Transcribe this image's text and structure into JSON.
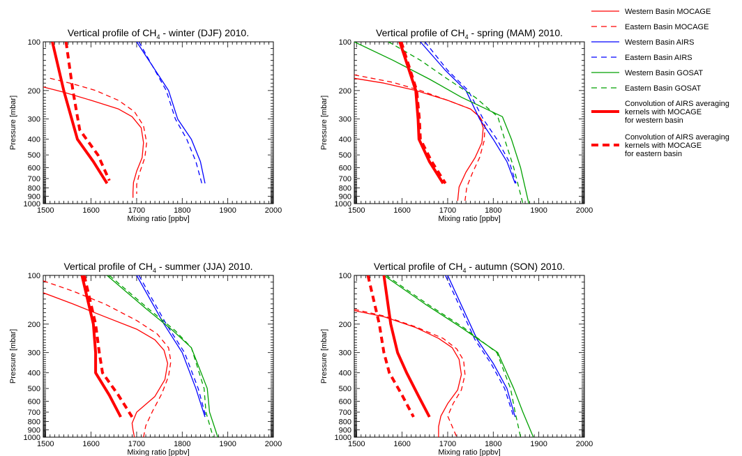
{
  "legend": {
    "placement": "top-right",
    "entries": [
      {
        "lines": [
          "Western Basin MOCAGE"
        ],
        "color": "#ff0000",
        "dash": "solid",
        "weight": "thin"
      },
      {
        "lines": [
          "Eastern Basin MOCAGE"
        ],
        "color": "#ff0000",
        "dash": "dashed",
        "weight": "thin"
      },
      {
        "lines": [
          "Western Basin AIRS"
        ],
        "color": "#0000ff",
        "dash": "solid",
        "weight": "thin"
      },
      {
        "lines": [
          "Eastern Basin AIRS"
        ],
        "color": "#0000ff",
        "dash": "dashed",
        "weight": "thin"
      },
      {
        "lines": [
          "Western Basin GOSAT"
        ],
        "color": "#00a000",
        "dash": "solid",
        "weight": "thin"
      },
      {
        "lines": [
          "Eastern Basin GOSAT"
        ],
        "color": "#00a000",
        "dash": "dashed",
        "weight": "thin"
      },
      {
        "lines": [
          "Convolution of AIRS averaging",
          "kernels with MOCAGE",
          "for western basin"
        ],
        "color": "#ff0000",
        "dash": "solid",
        "weight": "thick"
      },
      {
        "lines": [
          "Convolution of AIRS averaging",
          "kernels with MOCAGE",
          "for eastern basin"
        ],
        "color": "#ff0000",
        "dash": "dashed",
        "weight": "thick"
      }
    ]
  },
  "chart_data": [
    {
      "type": "line",
      "title_pre": "Vertical profile of CH",
      "title_sub": "4",
      "title_post": " - winter (DJF) 2010.",
      "xlabel": "Mixing ratio [ppbv]",
      "ylabel": "Pressure [mbar]",
      "xlim": [
        1495,
        2000
      ],
      "ylim": [
        1000,
        100
      ],
      "yscale": "log",
      "xticks": [
        1500,
        1600,
        1700,
        1800,
        1900,
        2000
      ],
      "yticks": [
        100,
        200,
        300,
        400,
        500,
        600,
        700,
        800,
        900,
        1000
      ],
      "series": [
        {
          "legend_index": 0,
          "color": "#ff0000",
          "dash": "solid",
          "weight": "thin",
          "x": [
            1495,
            1540,
            1600,
            1660,
            1690,
            1710,
            1715,
            1712,
            1700,
            1693,
            1692,
            1692
          ],
          "y": [
            190,
            205,
            230,
            260,
            290,
            340,
            420,
            520,
            630,
            740,
            850,
            920
          ]
        },
        {
          "legend_index": 1,
          "color": "#ff0000",
          "dash": "dashed",
          "weight": "thin",
          "x": [
            1510,
            1560,
            1610,
            1660,
            1695,
            1715,
            1722,
            1718,
            1707,
            1700,
            1700
          ],
          "y": [
            168,
            182,
            200,
            230,
            270,
            330,
            420,
            520,
            640,
            760,
            870
          ]
        },
        {
          "legend_index": 2,
          "color": "#0000ff",
          "dash": "solid",
          "weight": "thin",
          "x": [
            1700,
            1770,
            1790,
            1820,
            1840,
            1850
          ],
          "y": [
            100,
            200,
            300,
            400,
            550,
            750
          ]
        },
        {
          "legend_index": 3,
          "color": "#0000ff",
          "dash": "dashed",
          "weight": "thin",
          "x": [
            1705,
            1765,
            1785,
            1810,
            1830,
            1843
          ],
          "y": [
            100,
            200,
            300,
            400,
            550,
            750
          ]
        },
        {
          "legend_index": 6,
          "color": "#ff0000",
          "dash": "solid",
          "weight": "thick",
          "x": [
            1515,
            1540,
            1570,
            1605,
            1635
          ],
          "y": [
            100,
            200,
            400,
            550,
            750
          ]
        },
        {
          "legend_index": 7,
          "color": "#ff0000",
          "dash": "dashed",
          "weight": "thick",
          "x": [
            1545,
            1560,
            1575,
            1615,
            1640
          ],
          "y": [
            100,
            200,
            350,
            500,
            720
          ]
        }
      ]
    },
    {
      "type": "line",
      "title_pre": "Vertical profile of CH",
      "title_sub": "4",
      "title_post": " - spring (MAM) 2010.",
      "xlabel": "Mixing ratio [ppbv]",
      "ylabel": "Pressure [mbar]",
      "xlim": [
        1495,
        2000
      ],
      "ylim": [
        1000,
        100
      ],
      "yscale": "log",
      "xticks": [
        1500,
        1600,
        1700,
        1800,
        1900,
        2000
      ],
      "yticks": [
        100,
        200,
        300,
        400,
        500,
        600,
        700,
        800,
        900,
        1000
      ],
      "series": [
        {
          "legend_index": 0,
          "color": "#ff0000",
          "dash": "solid",
          "weight": "thin",
          "x": [
            1495,
            1560,
            1630,
            1700,
            1750,
            1770,
            1778,
            1775,
            1760,
            1740,
            1725,
            1722
          ],
          "y": [
            168,
            180,
            200,
            230,
            260,
            290,
            340,
            420,
            520,
            640,
            790,
            960
          ]
        },
        {
          "legend_index": 1,
          "color": "#ff0000",
          "dash": "dashed",
          "weight": "thin",
          "x": [
            1495,
            1580,
            1640,
            1700,
            1750,
            1770,
            1782,
            1780,
            1770,
            1755,
            1742,
            1738
          ],
          "y": [
            160,
            178,
            200,
            230,
            260,
            290,
            330,
            410,
            520,
            640,
            790,
            960
          ]
        },
        {
          "legend_index": 2,
          "color": "#0000ff",
          "dash": "solid",
          "weight": "thin",
          "x": [
            1640,
            1695,
            1740,
            1770,
            1800,
            1830,
            1848
          ],
          "y": [
            100,
            150,
            200,
            300,
            400,
            550,
            750
          ]
        },
        {
          "legend_index": 3,
          "color": "#0000ff",
          "dash": "dashed",
          "weight": "thin",
          "x": [
            1650,
            1700,
            1745,
            1778,
            1808,
            1835,
            1850
          ],
          "y": [
            100,
            150,
            200,
            300,
            400,
            550,
            750
          ]
        },
        {
          "legend_index": 4,
          "color": "#00a000",
          "dash": "solid",
          "weight": "thin",
          "x": [
            1495,
            1580,
            1660,
            1730,
            1820,
            1840,
            1860,
            1878
          ],
          "y": [
            100,
            130,
            170,
            220,
            290,
            400,
            600,
            1000
          ]
        },
        {
          "legend_index": 5,
          "color": "#00a000",
          "dash": "dashed",
          "weight": "thin",
          "x": [
            1570,
            1640,
            1700,
            1760,
            1810,
            1825,
            1845,
            1865
          ],
          "y": [
            100,
            130,
            170,
            220,
            290,
            400,
            600,
            1000
          ]
        },
        {
          "legend_index": 6,
          "color": "#ff0000",
          "dash": "solid",
          "weight": "thick",
          "x": [
            1595,
            1630,
            1635,
            1637,
            1660,
            1690
          ],
          "y": [
            100,
            200,
            300,
            400,
            550,
            750
          ]
        },
        {
          "legend_index": 7,
          "color": "#ff0000",
          "dash": "dashed",
          "weight": "thick",
          "x": [
            1598,
            1632,
            1638,
            1640,
            1665,
            1695
          ],
          "y": [
            100,
            200,
            300,
            400,
            550,
            750
          ]
        }
      ]
    },
    {
      "type": "line",
      "title_pre": "Vertical profile of CH",
      "title_sub": "4",
      "title_post": " - summer (JJA) 2010.",
      "xlabel": "Mixing ratio [ppbv]",
      "ylabel": "Pressure [mbar]",
      "xlim": [
        1495,
        2000
      ],
      "ylim": [
        1000,
        100
      ],
      "yscale": "log",
      "xticks": [
        1500,
        1600,
        1700,
        1800,
        1900,
        2000
      ],
      "yticks": [
        100,
        200,
        300,
        400,
        500,
        600,
        700,
        800,
        900,
        1000
      ],
      "series": [
        {
          "legend_index": 0,
          "color": "#ff0000",
          "dash": "solid",
          "weight": "thin",
          "x": [
            1495,
            1560,
            1630,
            1700,
            1740,
            1760,
            1768,
            1762,
            1740,
            1700,
            1690,
            1692,
            1695
          ],
          "y": [
            128,
            150,
            180,
            215,
            250,
            290,
            350,
            440,
            560,
            700,
            820,
            900,
            1000
          ]
        },
        {
          "legend_index": 1,
          "color": "#ff0000",
          "dash": "dashed",
          "weight": "thin",
          "x": [
            1495,
            1560,
            1630,
            1700,
            1745,
            1770,
            1775,
            1770,
            1755,
            1735,
            1720,
            1715
          ],
          "y": [
            108,
            125,
            150,
            190,
            230,
            280,
            340,
            420,
            540,
            690,
            850,
            1000
          ]
        },
        {
          "legend_index": 2,
          "color": "#0000ff",
          "dash": "solid",
          "weight": "thin",
          "x": [
            1700,
            1760,
            1800,
            1830,
            1850
          ],
          "y": [
            100,
            200,
            300,
            500,
            750
          ]
        },
        {
          "legend_index": 3,
          "color": "#0000ff",
          "dash": "dashed",
          "weight": "thin",
          "x": [
            1705,
            1765,
            1805,
            1835,
            1852
          ],
          "y": [
            100,
            200,
            300,
            500,
            750
          ]
        },
        {
          "legend_index": 4,
          "color": "#00a000",
          "dash": "solid",
          "weight": "thin",
          "x": [
            1635,
            1720,
            1780,
            1820,
            1855,
            1860,
            1878
          ],
          "y": [
            100,
            160,
            220,
            280,
            500,
            700,
            1000
          ]
        },
        {
          "legend_index": 5,
          "color": "#00a000",
          "dash": "dashed",
          "weight": "thin",
          "x": [
            1640,
            1725,
            1785,
            1820,
            1848,
            1852,
            1868
          ],
          "y": [
            100,
            160,
            220,
            280,
            500,
            700,
            1000
          ]
        },
        {
          "legend_index": 6,
          "color": "#ff0000",
          "dash": "solid",
          "weight": "thick",
          "x": [
            1580,
            1605,
            1610,
            1610,
            1640,
            1665
          ],
          "y": [
            100,
            200,
            300,
            400,
            550,
            750
          ]
        },
        {
          "legend_index": 7,
          "color": "#ff0000",
          "dash": "dashed",
          "weight": "thick",
          "x": [
            1585,
            1610,
            1618,
            1625,
            1660,
            1690
          ],
          "y": [
            100,
            200,
            300,
            400,
            550,
            750
          ]
        }
      ]
    },
    {
      "type": "line",
      "title_pre": "Vertical profile of CH",
      "title_sub": "4",
      "title_post": " - autumn (SON) 2010.",
      "xlabel": "Mixing ratio [ppbv]",
      "ylabel": "Pressure [mbar]",
      "xlim": [
        1495,
        2000
      ],
      "ylim": [
        1000,
        100
      ],
      "yscale": "log",
      "xticks": [
        1500,
        1600,
        1700,
        1800,
        1900,
        2000
      ],
      "yticks": [
        100,
        200,
        300,
        400,
        500,
        600,
        700,
        800,
        900,
        1000
      ],
      "series": [
        {
          "legend_index": 0,
          "color": "#ff0000",
          "dash": "solid",
          "weight": "thin",
          "x": [
            1495,
            1560,
            1630,
            1680,
            1710,
            1725,
            1730,
            1722,
            1700,
            1685,
            1680,
            1680
          ],
          "y": [
            165,
            180,
            210,
            245,
            280,
            330,
            410,
            510,
            620,
            740,
            860,
            1000
          ]
        },
        {
          "legend_index": 1,
          "color": "#ff0000",
          "dash": "dashed",
          "weight": "thin",
          "x": [
            1495,
            1560,
            1630,
            1690,
            1720,
            1735,
            1738,
            1730,
            1712,
            1700,
            1710,
            1720
          ],
          "y": [
            162,
            178,
            208,
            245,
            285,
            335,
            410,
            510,
            620,
            740,
            860,
            1000
          ]
        },
        {
          "legend_index": 2,
          "color": "#0000ff",
          "dash": "solid",
          "weight": "thin",
          "x": [
            1700,
            1765,
            1800,
            1830,
            1848
          ],
          "y": [
            100,
            250,
            350,
            500,
            750
          ]
        },
        {
          "legend_index": 3,
          "color": "#0000ff",
          "dash": "dashed",
          "weight": "thin",
          "x": [
            1695,
            1760,
            1795,
            1825,
            1845
          ],
          "y": [
            100,
            250,
            350,
            500,
            750
          ]
        },
        {
          "legend_index": 4,
          "color": "#00a000",
          "dash": "solid",
          "weight": "thin",
          "x": [
            1560,
            1650,
            1730,
            1810,
            1845,
            1865,
            1888
          ],
          "y": [
            100,
            150,
            210,
            300,
            500,
            700,
            1000
          ]
        },
        {
          "legend_index": 5,
          "color": "#00a000",
          "dash": "dashed",
          "weight": "thin",
          "x": [
            1565,
            1655,
            1735,
            1808,
            1838,
            1848,
            1860
          ],
          "y": [
            100,
            150,
            210,
            300,
            500,
            700,
            1000
          ]
        },
        {
          "legend_index": 6,
          "color": "#ff0000",
          "dash": "solid",
          "weight": "thick",
          "x": [
            1560,
            1575,
            1590,
            1610,
            1635,
            1660
          ],
          "y": [
            100,
            200,
            300,
            400,
            550,
            750
          ]
        },
        {
          "legend_index": 7,
          "color": "#ff0000",
          "dash": "dashed",
          "weight": "thick",
          "x": [
            1525,
            1550,
            1560,
            1572,
            1600,
            1625
          ],
          "y": [
            100,
            200,
            300,
            400,
            550,
            750
          ]
        }
      ]
    }
  ]
}
